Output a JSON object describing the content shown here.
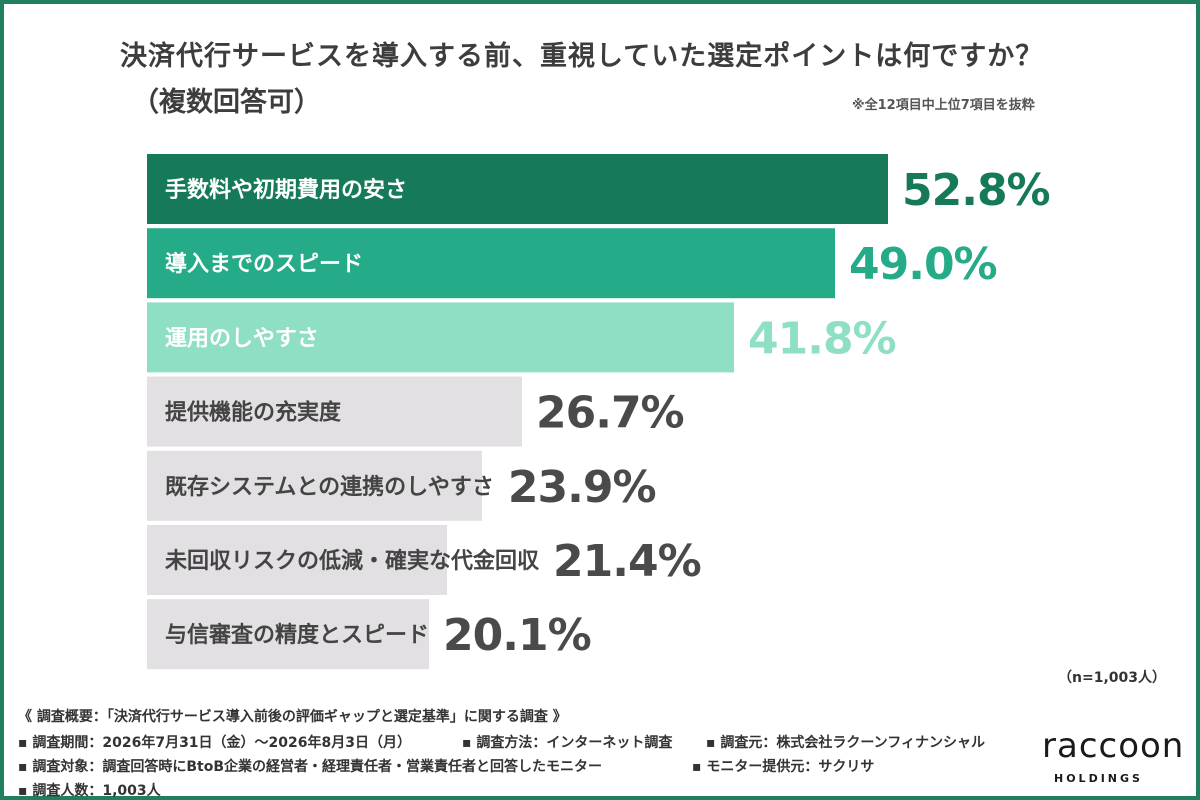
{
  "title": "決済代行サービスを導入する前、重視していた選定ポイントは何ですか？",
  "subtitle": "（複数回答可）",
  "excerpt_note": "※全12項目中上位7項目を抜粋",
  "sample_note": "（n=1,003人）",
  "colors": {
    "frame": "#1f7f5e",
    "bar1": "#167a5a",
    "bar2": "#26ab88",
    "bar3": "#8fdfc4",
    "bar_gray": "#e2e0e2",
    "value1": "#167a5a",
    "value2": "#26ab88",
    "value3": "#8fdfc4",
    "value_gray": "#4a4a4a"
  },
  "chart_data": {
    "type": "bar",
    "orientation": "horizontal",
    "categories": [
      "手数料や初期費用の安さ",
      "導入までのスピード",
      "運用のしやすさ",
      "提供機能の充実度",
      "既存システムとの連携のしやすさ",
      "未回収リスクの低減・確実な代金回収",
      "与信審査の精度とスピード"
    ],
    "values": [
      52.8,
      49.0,
      41.8,
      26.7,
      23.9,
      21.4,
      20.1
    ],
    "value_labels": [
      "52.8%",
      "49.0%",
      "41.8%",
      "26.7%",
      "23.9%",
      "21.4%",
      "20.1%"
    ],
    "unit": "%",
    "xlim": [
      0,
      52.8
    ],
    "grid": false,
    "legend": "none"
  },
  "footer": {
    "overview": "《 調査概要：「決済代行サービス導入前後の評価ギャップと選定基準」に関する調査 》",
    "period": "▪ 調査期間：2026年7月31日（金）〜2026年8月3日（月）",
    "method": "▪ 調査方法：インターネット調査",
    "source": "▪ 調査元：株式会社ラクーンフィナンシャル",
    "target": "▪ 調査対象：調査回答時にBtoB企業の経営者・経理責任者・営業責任者と回答したモニター",
    "panel": "▪ モニター提供元：サクリサ",
    "count": "▪ 調査人数：1,003人"
  },
  "logo": {
    "text": "raccoon",
    "sub": "HOLDINGS"
  }
}
